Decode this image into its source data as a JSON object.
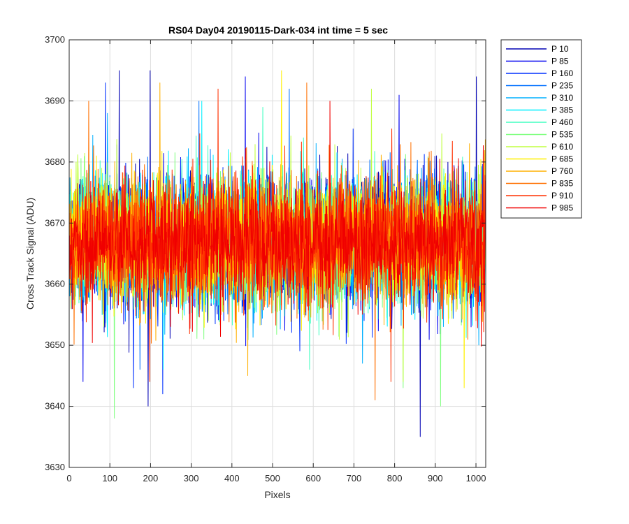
{
  "chart_data": {
    "type": "line",
    "title": "RS04 Day04 20190115-Dark-034 int time = 5 sec",
    "xlabel": "Pixels",
    "ylabel": "Cross Track Signal (ADU)",
    "xlim": [
      0,
      1024
    ],
    "ylim": [
      3630,
      3700
    ],
    "xticks": [
      0,
      100,
      200,
      300,
      400,
      500,
      600,
      700,
      800,
      900,
      1000
    ],
    "yticks": [
      3630,
      3640,
      3650,
      3660,
      3670,
      3680,
      3690,
      3700
    ],
    "grid": true,
    "legend_position": "outside-right",
    "x_count": 1024,
    "series": [
      {
        "name": "P 10",
        "color": "#0000B4",
        "mean": 3667,
        "spikes": [
          [
            122,
            3695
          ],
          [
            198,
            3695
          ],
          [
            1000,
            3694
          ],
          [
            862,
            3635
          ],
          [
            193,
            3640
          ]
        ]
      },
      {
        "name": "P 85",
        "color": "#0000F0",
        "mean": 3667,
        "spikes": [
          [
            432,
            3694
          ],
          [
            810,
            3691
          ],
          [
            33,
            3644
          ]
        ]
      },
      {
        "name": "P 160",
        "color": "#0030FF",
        "mean": 3667,
        "spikes": [
          [
            88,
            3693
          ],
          [
            157,
            3643
          ],
          [
            229,
            3642
          ]
        ]
      },
      {
        "name": "P 235",
        "color": "#0070FF",
        "mean": 3667,
        "spikes": [
          [
            318,
            3690
          ],
          [
            540,
            3692
          ],
          [
            173,
            3646
          ]
        ]
      },
      {
        "name": "P 310",
        "color": "#00B0FF",
        "mean": 3667,
        "spikes": [
          [
            93,
            3688
          ],
          [
            720,
            3647
          ]
        ]
      },
      {
        "name": "P 385",
        "color": "#00F0FF",
        "mean": 3667,
        "spikes": [
          [
            325,
            3690
          ],
          [
            230,
            3646
          ]
        ]
      },
      {
        "name": "P 460",
        "color": "#40FFC0",
        "mean": 3667,
        "spikes": [
          [
            475,
            3689
          ],
          [
            590,
            3646
          ]
        ]
      },
      {
        "name": "P 535",
        "color": "#80FF80",
        "mean": 3667,
        "spikes": [
          [
            110,
            3638
          ],
          [
            912,
            3640
          ],
          [
            820,
            3643
          ]
        ]
      },
      {
        "name": "P 610",
        "color": "#C0FF40",
        "mean": 3667,
        "spikes": [
          [
            742,
            3692
          ],
          [
            820,
            3644
          ]
        ]
      },
      {
        "name": "P 685",
        "color": "#FFF000",
        "mean": 3667,
        "spikes": [
          [
            521,
            3695
          ],
          [
            970,
            3643
          ]
        ]
      },
      {
        "name": "P 760",
        "color": "#FFB000",
        "mean": 3667,
        "spikes": [
          [
            222,
            3693
          ],
          [
            438,
            3645
          ]
        ]
      },
      {
        "name": "P 835",
        "color": "#FF7000",
        "mean": 3667,
        "spikes": [
          [
            583,
            3693
          ],
          [
            47,
            3690
          ],
          [
            751,
            3641
          ]
        ]
      },
      {
        "name": "P 910",
        "color": "#FF3000",
        "mean": 3667,
        "spikes": [
          [
            365,
            3692
          ],
          [
            197,
            3644
          ],
          [
            790,
            3644
          ]
        ]
      },
      {
        "name": "P 985",
        "color": "#F00000",
        "mean": 3667,
        "spikes": [
          [
            640,
            3690
          ],
          [
            720,
            3655
          ]
        ]
      }
    ]
  }
}
